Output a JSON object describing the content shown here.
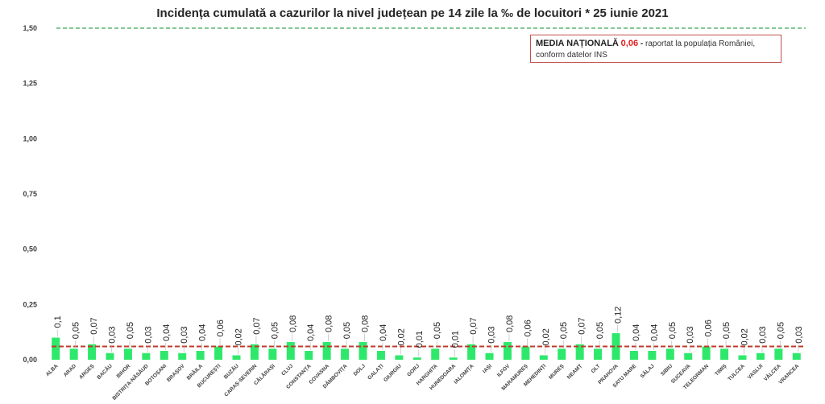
{
  "chart_data": {
    "type": "bar",
    "title": "Incidența cumulată a cazurilor la nivel județean pe 14 zile la ‰ de locuitori *  25 iunie 2021",
    "ylim": [
      0,
      1.5
    ],
    "yticks": [
      "0,00",
      "0,25",
      "0,50",
      "0,75",
      "1,00",
      "1,25",
      "1,50"
    ],
    "grid": false,
    "categories": [
      "ALBA",
      "ARAD",
      "ARGEȘ",
      "BACĂU",
      "BIHOR",
      "BISTRIȚA-NĂSĂUD",
      "BOTOȘANI",
      "BRAȘOV",
      "BRĂILA",
      "BUCUREȘTI",
      "BUZĂU",
      "CARAȘ-SEVERIN",
      "CĂLĂRAȘI",
      "CLUJ",
      "CONSTANȚA",
      "COVASNA",
      "DÂMBOVIȚA",
      "DOLJ",
      "GALAȚI",
      "GIURGIU",
      "GORJ",
      "HARGHITA",
      "HUNEDOARA",
      "IALOMIȚA",
      "IAȘI",
      "ILFOV",
      "MARAMUREȘ",
      "MEHEDINȚI",
      "MUREȘ",
      "NEAMȚ",
      "OLT",
      "PRAHOVA",
      "SATU MARE",
      "SĂLAJ",
      "SIBIU",
      "SUCEAVA",
      "TELEORMAN",
      "TIMIȘ",
      "TULCEA",
      "VASLUI",
      "VÂLCEA",
      "VRANCEA"
    ],
    "values": [
      0.1,
      0.05,
      0.07,
      0.03,
      0.05,
      0.03,
      0.04,
      0.03,
      0.04,
      0.06,
      0.02,
      0.07,
      0.05,
      0.08,
      0.04,
      0.08,
      0.05,
      0.08,
      0.04,
      0.02,
      0.01,
      0.05,
      0.01,
      0.07,
      0.03,
      0.08,
      0.06,
      0.02,
      0.05,
      0.07,
      0.05,
      0.12,
      0.04,
      0.04,
      0.05,
      0.03,
      0.06,
      0.05,
      0.02,
      0.03,
      0.05,
      0.03
    ],
    "value_labels": [
      "0,1",
      "0,05",
      "0,07",
      "0,03",
      "0,05",
      "0,03",
      "0,04",
      "0,03",
      "0,04",
      "0,06",
      "0,02",
      "0,07",
      "0,05",
      "0,08",
      "0,04",
      "0,08",
      "0,05",
      "0,08",
      "0,04",
      "0,02",
      "0,01",
      "0,05",
      "0,01",
      "0,07",
      "0,03",
      "0,08",
      "0,06",
      "0,02",
      "0,05",
      "0,07",
      "0,05",
      "0,12",
      "0,04",
      "0,04",
      "0,05",
      "0,03",
      "0,06",
      "0,05",
      "0,02",
      "0,03",
      "0,05",
      "0,03"
    ],
    "reference_lines": [
      {
        "value": 1.5,
        "color": "#3aa655",
        "style": "dashed"
      },
      {
        "value": 0.06,
        "color": "#c0392b",
        "style": "dashed"
      }
    ],
    "bar_color": "#2ee86b",
    "legend": {
      "position": "top-right",
      "label": "MEDIA NAȚIONALĂ",
      "value": "0,06",
      "separator": "-",
      "text": "raportat la populația României,",
      "text2": "conform datelor INS"
    }
  }
}
